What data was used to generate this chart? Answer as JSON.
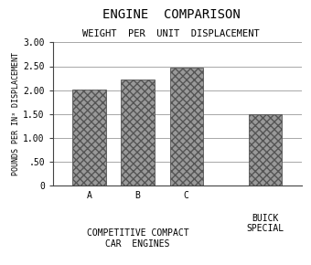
{
  "title": "ENGINE  COMPARISON",
  "subtitle": "WEIGHT  PER  UNIT  DISPLACEMENT",
  "ylabel": "POUNDS PER IN³ DISPLACEMENT",
  "bars": [
    {
      "label": "A",
      "value": 2.02
    },
    {
      "label": "B",
      "value": 2.22
    },
    {
      "label": "C",
      "value": 2.47
    },
    {
      "label": "BUICK\nSPECIAL",
      "value": 1.5
    }
  ],
  "group_label_abc": "COMPETITIVE COMPACT\nCAR  ENGINES",
  "ylim": [
    0,
    3.0
  ],
  "yticks": [
    0,
    0.5,
    1.0,
    1.5,
    2.0,
    2.5,
    3.0
  ],
  "ytick_labels": [
    "0",
    ".50",
    "1.00",
    "1.50",
    "2.00",
    "2.50",
    "3.00"
  ],
  "bar_color": "#888888",
  "bg_color": "#ffffff",
  "title_fontsize": 10,
  "subtitle_fontsize": 7.5,
  "ylabel_fontsize": 6,
  "tick_fontsize": 7,
  "label_fontsize": 7,
  "group_label_fontsize": 7
}
